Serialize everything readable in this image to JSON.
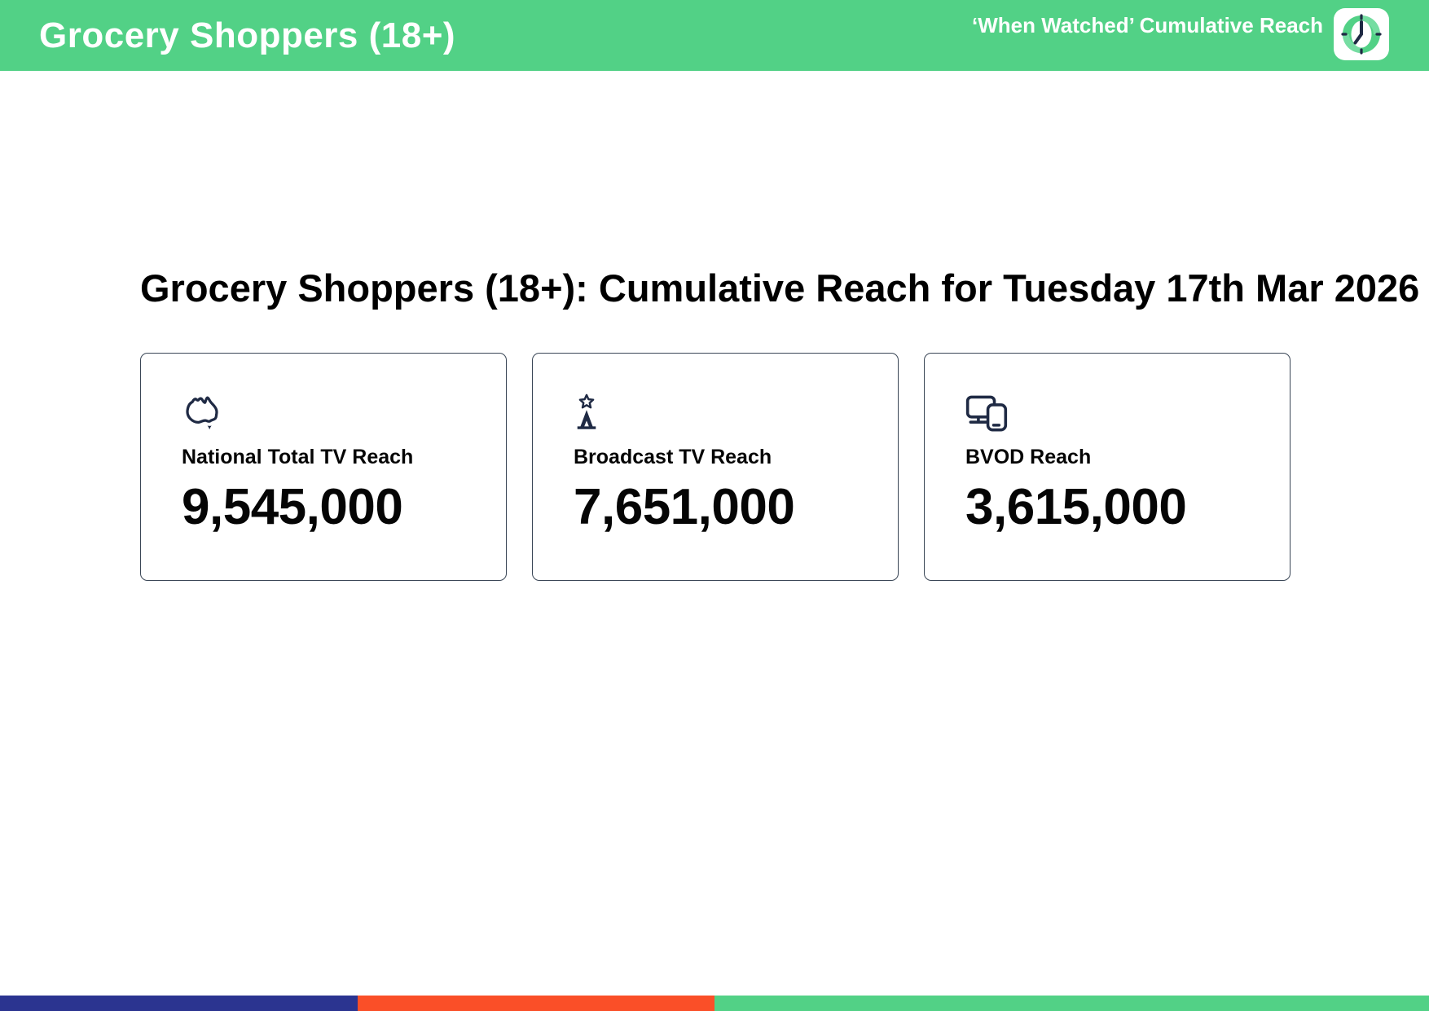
{
  "header": {
    "title": "Grocery Shoppers (18+)",
    "subtitle": "‘When Watched’ Cumulative Reach",
    "clock_icon": "clock-icon"
  },
  "main": {
    "heading": "Grocery Shoppers (18+): Cumulative Reach for Tuesday 17th Mar 2026",
    "cards": [
      {
        "icon": "australia-map-icon",
        "label": "National Total TV Reach",
        "value": "9,545,000"
      },
      {
        "icon": "broadcast-tower-icon",
        "label": "Broadcast TV Reach",
        "value": "7,651,000"
      },
      {
        "icon": "devices-icon",
        "label": "BVOD Reach",
        "value": "3,615,000"
      }
    ]
  },
  "footer": {
    "segments": [
      {
        "name": "navy-segment",
        "color": "#2B3490",
        "width_pct": 25
      },
      {
        "name": "orange-segment",
        "color": "#FA4F28",
        "width_pct": 25
      },
      {
        "name": "green-segment",
        "color": "#52D186",
        "width_pct": 50
      }
    ]
  },
  "colors": {
    "header_bg": "#52D186",
    "icon_ink": "#1F2A44",
    "card_border": "#3A4656",
    "text": "#050505",
    "header_text": "#FFFFFF"
  }
}
